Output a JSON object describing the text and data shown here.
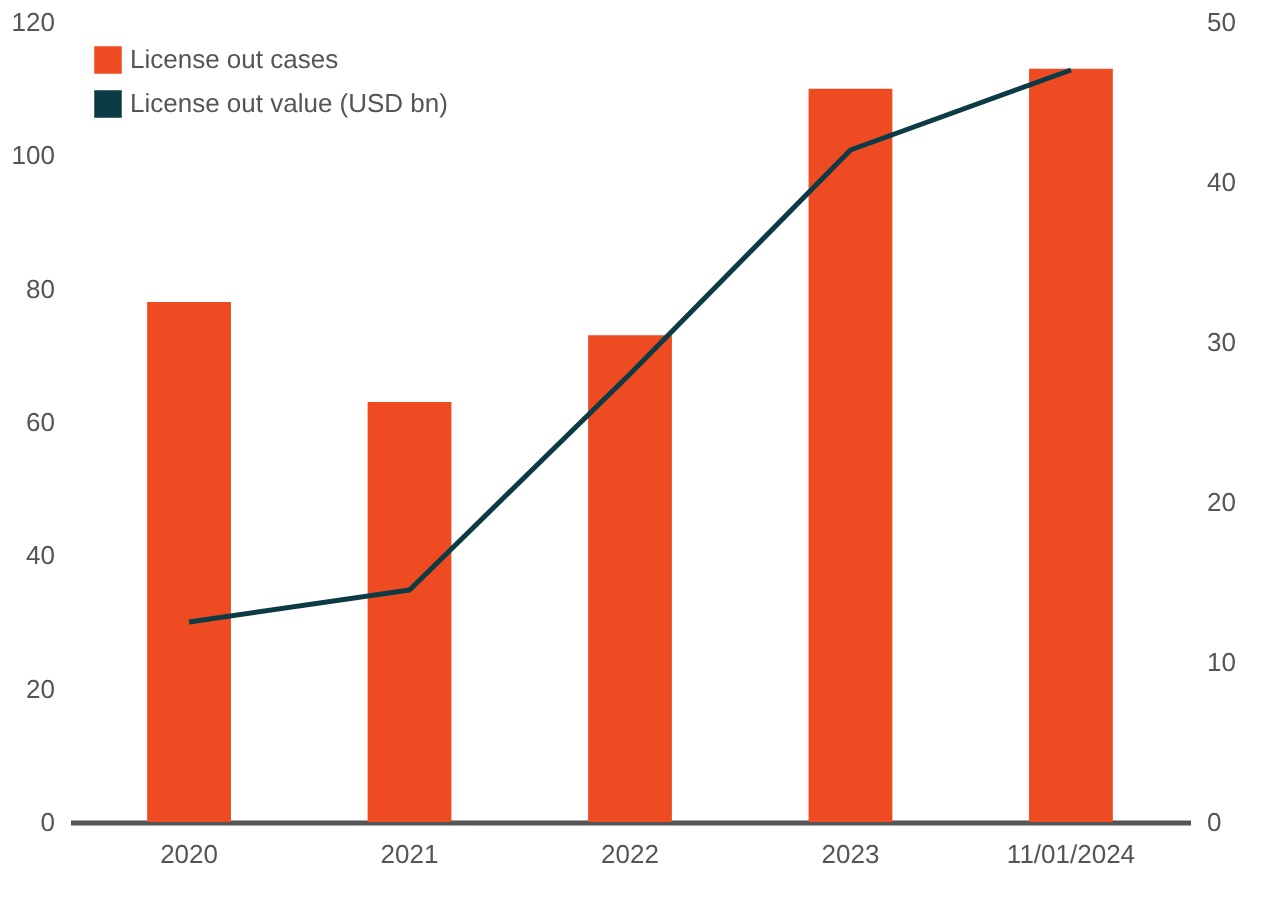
{
  "chart_data": {
    "type": "bar",
    "categories": [
      "2020",
      "2021",
      "2022",
      "2023",
      "11/01/2024"
    ],
    "series": [
      {
        "name": "License out cases",
        "color": "#ee4b22",
        "values": [
          78,
          63,
          73,
          110,
          113
        ]
      },
      {
        "name": "License out value (USD bn)",
        "type": "line",
        "axis": "y2",
        "color": "#0d3b45",
        "values": [
          12.5,
          14.5,
          28,
          42,
          47
        ]
      }
    ],
    "ylim": [
      0,
      120
    ],
    "yticks": [
      0,
      20,
      40,
      60,
      80,
      100,
      120
    ],
    "y2lim": [
      0,
      50
    ],
    "y2ticks": [
      0,
      10,
      20,
      30,
      40,
      50
    ],
    "grid": false,
    "legend": "top left",
    "marker": "none",
    "line_style": "solid"
  }
}
